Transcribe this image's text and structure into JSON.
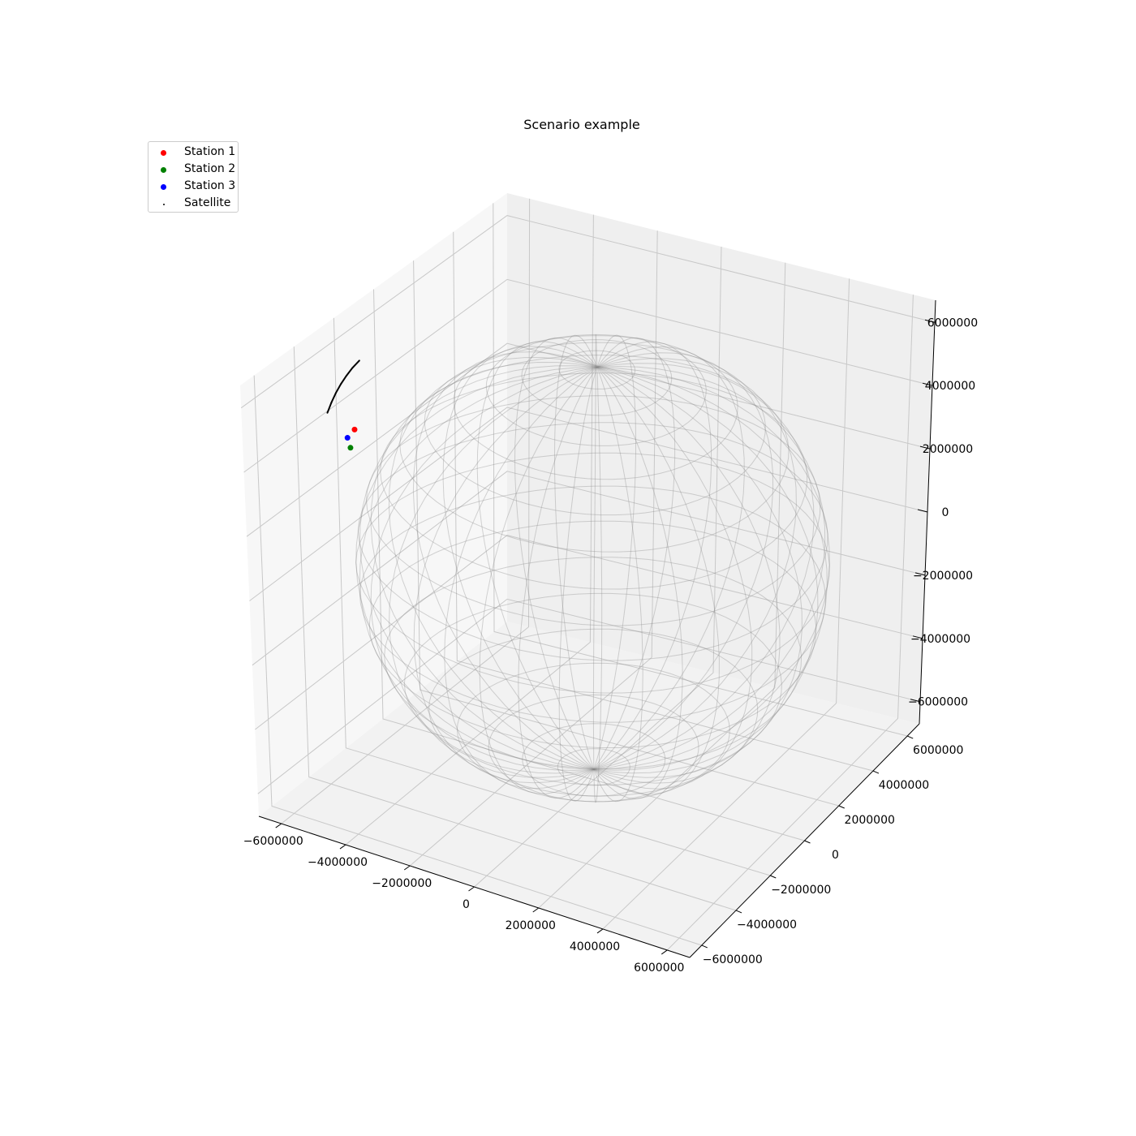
{
  "chart_data": {
    "type": "scatter",
    "projection": "3d",
    "title": "Scenario example",
    "xlabel": "",
    "ylabel": "",
    "zlabel": "",
    "xlim": [
      -6700000,
      6700000
    ],
    "ylim": [
      -6700000,
      6700000
    ],
    "zlim": [
      -6700000,
      6700000
    ],
    "x_ticks": [
      -6000000,
      -4000000,
      -2000000,
      0,
      2000000,
      4000000,
      6000000
    ],
    "y_ticks": [
      -6000000,
      -4000000,
      -2000000,
      0,
      2000000,
      4000000,
      6000000
    ],
    "z_ticks": [
      -6000000,
      -4000000,
      -2000000,
      0,
      2000000,
      4000000,
      6000000
    ],
    "x_tick_labels": [
      "−6000000",
      "−4000000",
      "−2000000",
      "0",
      "2000000",
      "4000000",
      "6000000"
    ],
    "y_tick_labels": [
      "−6000000",
      "−4000000",
      "−2000000",
      "0",
      "2000000",
      "4000000",
      "6000000"
    ],
    "z_tick_labels": [
      "−6000000",
      "−4000000",
      "−2000000",
      "0",
      "2000000",
      "4000000",
      "6000000"
    ],
    "grid": true,
    "legend_position": "upper-left",
    "earth_sphere": {
      "radius": 6371000,
      "color": "#888888",
      "style": "wireframe"
    },
    "series": [
      {
        "name": "Station 1",
        "color": "#ff0000",
        "points": [
          [
            -5300000,
            -3450000,
            4350000
          ]
        ]
      },
      {
        "name": "Station 2",
        "color": "#008000",
        "points": [
          [
            -5200000,
            -3850000,
            4000000
          ]
        ]
      },
      {
        "name": "Station 3",
        "color": "#0000ff",
        "points": [
          [
            -5400000,
            -3650000,
            4150000
          ]
        ]
      },
      {
        "name": "Satellite",
        "color": "#000000",
        "points": [
          [
            -6100000,
            -3450000,
            4600000
          ],
          [
            -6120000,
            -3200000,
            4800000
          ],
          [
            -6130000,
            -2950000,
            4980000
          ],
          [
            -6120000,
            -2700000,
            5150000
          ],
          [
            -6100000,
            -2450000,
            5300000
          ],
          [
            -6060000,
            -2200000,
            5450000
          ],
          [
            -6000000,
            -1950000,
            5580000
          ]
        ]
      }
    ]
  }
}
